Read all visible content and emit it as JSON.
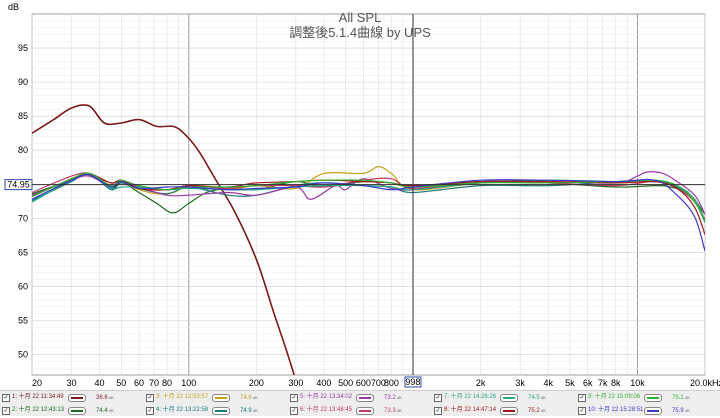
{
  "chart_data": {
    "type": "line",
    "title": "All SPL",
    "subtitle": "調整後5.1.4曲線 by UPS",
    "ylabel": "dB",
    "xlabel": "",
    "xscale": "log",
    "xlim": [
      20,
      20000
    ],
    "ylim": [
      47,
      100
    ],
    "grid": true,
    "y_ticks": [
      50,
      55,
      60,
      65,
      70,
      75,
      80,
      85,
      90,
      95
    ],
    "x_ticks": [
      {
        "v": 20,
        "t": "20"
      },
      {
        "v": 30,
        "t": "30"
      },
      {
        "v": 40,
        "t": "40"
      },
      {
        "v": 50,
        "t": "50"
      },
      {
        "v": 60,
        "t": "60"
      },
      {
        "v": 70,
        "t": "70"
      },
      {
        "v": 80,
        "t": "80"
      },
      {
        "v": 100,
        "t": "100"
      },
      {
        "v": 200,
        "t": "200"
      },
      {
        "v": 300,
        "t": "300"
      },
      {
        "v": 400,
        "t": "400"
      },
      {
        "v": 500,
        "t": "500"
      },
      {
        "v": 600,
        "t": "600"
      },
      {
        "v": 700,
        "t": "700"
      },
      {
        "v": 800,
        "t": "800"
      },
      {
        "v": 2000,
        "t": "2k"
      },
      {
        "v": 3000,
        "t": "3k"
      },
      {
        "v": 4000,
        "t": "4k"
      },
      {
        "v": 5000,
        "t": "5k"
      },
      {
        "v": 6000,
        "t": "6k"
      },
      {
        "v": 7000,
        "t": "7k"
      },
      {
        "v": 8000,
        "t": "8k"
      },
      {
        "v": 10000,
        "t": "10k"
      },
      {
        "v": 20000,
        "t": "20.0kHz"
      }
    ],
    "cursor": {
      "x": 998,
      "x_label": "998",
      "y": 74.95,
      "y_label": "74.95"
    },
    "series": [
      {
        "name": "1: 十月 22 11:34:49",
        "color": "#7b1a1a",
        "value": "36.6",
        "points": [
          [
            20,
            82.5
          ],
          [
            25,
            84.5
          ],
          [
            30,
            86.2
          ],
          [
            36,
            86.5
          ],
          [
            42,
            84
          ],
          [
            50,
            84
          ],
          [
            60,
            84.5
          ],
          [
            72,
            83.5
          ],
          [
            85,
            83.5
          ],
          [
            95,
            82.5
          ],
          [
            110,
            80
          ],
          [
            130,
            76
          ],
          [
            160,
            71
          ],
          [
            200,
            64
          ],
          [
            240,
            56
          ],
          [
            270,
            51
          ],
          [
            295,
            47
          ]
        ]
      },
      {
        "name": "2: 十月 22 12:43:13",
        "color": "#1b6b1b",
        "value": "74.4",
        "points": [
          [
            20,
            73.6
          ],
          [
            30,
            75.6
          ],
          [
            36,
            76.4
          ],
          [
            45,
            74.4
          ],
          [
            50,
            75.3
          ],
          [
            60,
            73.8
          ],
          [
            72,
            72.2
          ],
          [
            85,
            70.8
          ],
          [
            100,
            72.2
          ],
          [
            120,
            73.8
          ],
          [
            150,
            74.4
          ],
          [
            200,
            74.2
          ],
          [
            300,
            75.4
          ],
          [
            400,
            74.6
          ],
          [
            600,
            75.4
          ],
          [
            800,
            75.2
          ],
          [
            1000,
            74.6
          ],
          [
            2000,
            75.4
          ],
          [
            4000,
            75.2
          ],
          [
            8000,
            74.6
          ],
          [
            12000,
            74.8
          ],
          [
            14000,
            74.6
          ],
          [
            17000,
            73.6
          ],
          [
            20000,
            70.6
          ]
        ]
      },
      {
        "name": "3: 十月 22 12:53:57",
        "color": "#c6a218",
        "value": "74.6",
        "points": [
          [
            20,
            73.2
          ],
          [
            30,
            75.8
          ],
          [
            36,
            76.6
          ],
          [
            45,
            74.8
          ],
          [
            50,
            75.2
          ],
          [
            60,
            74.2
          ],
          [
            72,
            73.6
          ],
          [
            85,
            73.8
          ],
          [
            100,
            74.6
          ],
          [
            150,
            74.2
          ],
          [
            200,
            74.8
          ],
          [
            300,
            74.4
          ],
          [
            400,
            76.6
          ],
          [
            600,
            76.6
          ],
          [
            700,
            77.6
          ],
          [
            800,
            76.6
          ],
          [
            1000,
            74.2
          ],
          [
            2000,
            75.2
          ],
          [
            4000,
            75.6
          ],
          [
            8000,
            75.2
          ],
          [
            12000,
            75.4
          ],
          [
            15000,
            74.6
          ],
          [
            18000,
            72.6
          ],
          [
            20000,
            69.8
          ]
        ]
      },
      {
        "name": "4: 十月 22 13:22:58",
        "color": "#1a7a7a",
        "value": "74.9",
        "points": [
          [
            20,
            72.6
          ],
          [
            30,
            75.4
          ],
          [
            36,
            76.6
          ],
          [
            45,
            74.2
          ],
          [
            50,
            75.2
          ],
          [
            60,
            74.4
          ],
          [
            80,
            73.6
          ],
          [
            100,
            74.6
          ],
          [
            150,
            73.4
          ],
          [
            200,
            73.4
          ],
          [
            300,
            74.8
          ],
          [
            400,
            75.2
          ],
          [
            600,
            74.8
          ],
          [
            800,
            74.6
          ],
          [
            1000,
            73.8
          ],
          [
            2000,
            74.8
          ],
          [
            4000,
            74.8
          ],
          [
            8000,
            75.4
          ],
          [
            12000,
            75.6
          ],
          [
            15000,
            74.6
          ],
          [
            18000,
            72.4
          ],
          [
            20000,
            69.4
          ]
        ]
      },
      {
        "name": "5: 十月 22 13:34:02",
        "color": "#9a38a8",
        "value": "73.2",
        "points": [
          [
            20,
            73.4
          ],
          [
            30,
            75.6
          ],
          [
            36,
            76.2
          ],
          [
            45,
            74.6
          ],
          [
            50,
            75.6
          ],
          [
            60,
            74.6
          ],
          [
            80,
            73.4
          ],
          [
            100,
            73.4
          ],
          [
            150,
            73.8
          ],
          [
            200,
            73.4
          ],
          [
            300,
            74.6
          ],
          [
            350,
            72.8
          ],
          [
            450,
            74.8
          ],
          [
            500,
            74.2
          ],
          [
            600,
            75.8
          ],
          [
            800,
            74.4
          ],
          [
            1000,
            74.2
          ],
          [
            2000,
            75.2
          ],
          [
            4000,
            75.4
          ],
          [
            8000,
            75.2
          ],
          [
            10000,
            76.2
          ],
          [
            11000,
            76.8
          ],
          [
            13000,
            76.6
          ],
          [
            15000,
            75.4
          ],
          [
            18000,
            73.4
          ],
          [
            20000,
            70.6
          ]
        ]
      },
      {
        "name": "6: 十月 22 13:48:45",
        "color": "#c03a6a",
        "value": "73.3",
        "points": [
          [
            20,
            73.8
          ],
          [
            30,
            76.2
          ],
          [
            36,
            76.6
          ],
          [
            45,
            75.2
          ],
          [
            50,
            75.4
          ],
          [
            60,
            74.6
          ],
          [
            80,
            74.2
          ],
          [
            100,
            74.8
          ],
          [
            150,
            74.4
          ],
          [
            200,
            74.8
          ],
          [
            300,
            74.8
          ],
          [
            400,
            74.6
          ],
          [
            600,
            75.6
          ],
          [
            800,
            75.8
          ],
          [
            1000,
            74.4
          ],
          [
            2000,
            75.4
          ],
          [
            4000,
            75.2
          ],
          [
            8000,
            74.8
          ],
          [
            12000,
            75.4
          ],
          [
            15000,
            74.4
          ],
          [
            18000,
            72.4
          ],
          [
            20000,
            69.8
          ]
        ]
      },
      {
        "name": "7: 十月 22 14:26:26",
        "color": "#2aa88a",
        "value": "74.5",
        "points": [
          [
            20,
            72.4
          ],
          [
            30,
            75.6
          ],
          [
            36,
            76.4
          ],
          [
            45,
            74.4
          ],
          [
            50,
            74.6
          ],
          [
            60,
            74.6
          ],
          [
            80,
            74.2
          ],
          [
            100,
            74.4
          ],
          [
            150,
            74.2
          ],
          [
            200,
            74.2
          ],
          [
            300,
            74.6
          ],
          [
            400,
            74.8
          ],
          [
            600,
            74.8
          ],
          [
            800,
            74.6
          ],
          [
            1000,
            74.2
          ],
          [
            2000,
            75.2
          ],
          [
            4000,
            75.6
          ],
          [
            8000,
            75.4
          ],
          [
            12000,
            75.4
          ],
          [
            15000,
            74.8
          ],
          [
            18000,
            72.8
          ],
          [
            20000,
            69.6
          ]
        ]
      },
      {
        "name": "8: 十月 22 14:47:14",
        "color": "#a01818",
        "value": "75.2",
        "points": [
          [
            20,
            73.2
          ],
          [
            30,
            75.8
          ],
          [
            36,
            76.4
          ],
          [
            45,
            75.2
          ],
          [
            50,
            75.6
          ],
          [
            60,
            74.4
          ],
          [
            80,
            74.2
          ],
          [
            100,
            74.8
          ],
          [
            150,
            74.6
          ],
          [
            200,
            75.2
          ],
          [
            300,
            75.4
          ],
          [
            400,
            75.6
          ],
          [
            600,
            75.4
          ],
          [
            800,
            75.2
          ],
          [
            1000,
            74.8
          ],
          [
            2000,
            75.4
          ],
          [
            4000,
            75.4
          ],
          [
            8000,
            75.2
          ],
          [
            12000,
            75.4
          ],
          [
            15000,
            74.4
          ],
          [
            18000,
            71.6
          ],
          [
            20000,
            67.6
          ]
        ]
      },
      {
        "name": "9: 十月 22 15:09:06",
        "color": "#34b034",
        "value": "75.1",
        "points": [
          [
            20,
            73.2
          ],
          [
            30,
            75.8
          ],
          [
            36,
            76.6
          ],
          [
            45,
            74.8
          ],
          [
            50,
            75.6
          ],
          [
            60,
            74.8
          ],
          [
            80,
            74.2
          ],
          [
            100,
            74.6
          ],
          [
            150,
            74.6
          ],
          [
            200,
            74.8
          ],
          [
            300,
            75.4
          ],
          [
            400,
            75.6
          ],
          [
            600,
            75.6
          ],
          [
            800,
            75.2
          ],
          [
            1000,
            74.6
          ],
          [
            2000,
            75.2
          ],
          [
            4000,
            75.2
          ],
          [
            8000,
            75.4
          ],
          [
            12000,
            75.6
          ],
          [
            15000,
            74.8
          ],
          [
            18000,
            72.4
          ],
          [
            20000,
            69.6
          ]
        ]
      },
      {
        "name": "10: 十月 22 15:28:51",
        "color": "#3a3ac8",
        "value": "75.9",
        "points": [
          [
            20,
            72.8
          ],
          [
            30,
            75.6
          ],
          [
            36,
            76.4
          ],
          [
            45,
            74.6
          ],
          [
            50,
            75.4
          ],
          [
            60,
            74.4
          ],
          [
            80,
            74.6
          ],
          [
            100,
            74.6
          ],
          [
            150,
            74.2
          ],
          [
            200,
            74.4
          ],
          [
            300,
            74.6
          ],
          [
            400,
            75.2
          ],
          [
            600,
            74.8
          ],
          [
            800,
            74.2
          ],
          [
            1000,
            74.6
          ],
          [
            2000,
            75.6
          ],
          [
            4000,
            75.6
          ],
          [
            8000,
            75.4
          ],
          [
            12000,
            75.6
          ],
          [
            15000,
            73.4
          ],
          [
            18000,
            70.2
          ],
          [
            20000,
            65.2
          ]
        ]
      }
    ]
  }
}
